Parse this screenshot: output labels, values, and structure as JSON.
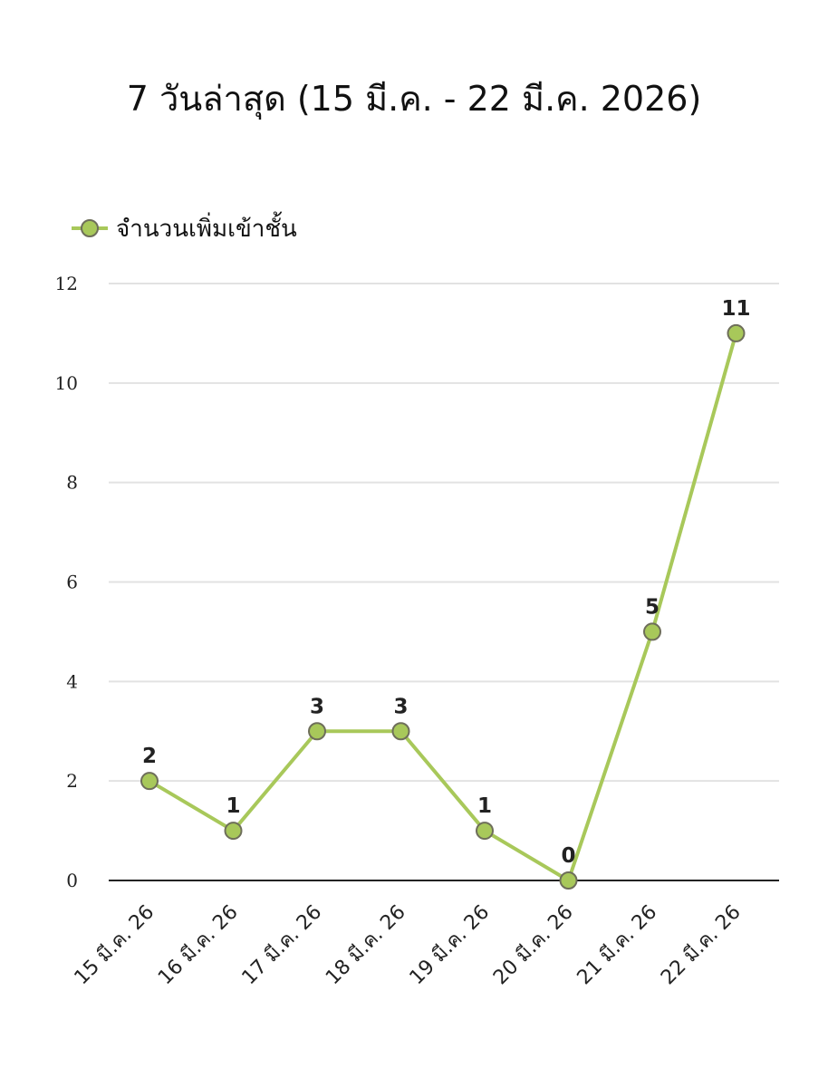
{
  "chart_data": {
    "type": "line",
    "title": "7 วันล่าสุด (15 มี.ค. - 22 มี.ค. 2026)",
    "categories": [
      "15 มี.ค. 26",
      "16 มี.ค. 26",
      "17 มี.ค. 26",
      "18 มี.ค. 26",
      "19 มี.ค. 26",
      "20 มี.ค. 26",
      "21 มี.ค. 26",
      "22 มี.ค. 26"
    ],
    "series": [
      {
        "name": "จำนวนเพิ่มเข้าชั้น",
        "values": [
          2,
          1,
          3,
          3,
          1,
          0,
          5,
          11
        ],
        "color": "#a8c85a",
        "marker_stroke": "#6e6e5a"
      }
    ],
    "yticks": [
      "0",
      "2",
      "4",
      "6",
      "8",
      "10",
      "12"
    ],
    "ylim": [
      0,
      12
    ],
    "xlabel": "",
    "ylabel": "",
    "grid": true,
    "legend": "top-left"
  }
}
